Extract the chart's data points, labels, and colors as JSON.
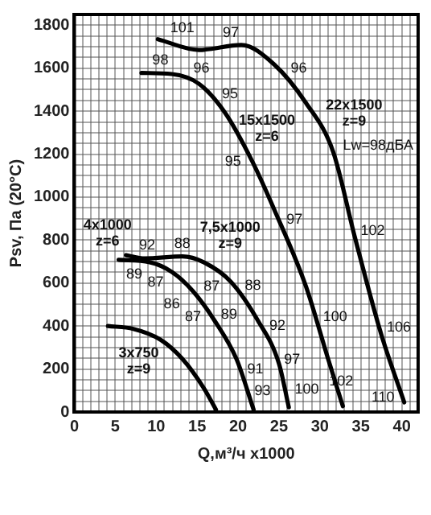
{
  "chart_data": {
    "type": "line",
    "xlabel": "Q,м³/ч x1000",
    "ylabel": "Psv, Па (20°С)",
    "xlim": [
      0,
      42
    ],
    "ylim": [
      0,
      1850
    ],
    "xticks": [
      0,
      {
        "value": 1,
        "label": null
      },
      {
        "value": 2,
        "label": null
      },
      {
        "value": 3,
        "label": null
      },
      {
        "value": 4,
        "label": null
      },
      5,
      {
        "value": 6,
        "label": null
      },
      {
        "value": 7,
        "label": null
      },
      {
        "value": 8,
        "label": null
      },
      {
        "value": 9,
        "label": null
      },
      10,
      {
        "value": 11,
        "label": null
      },
      {
        "value": 12,
        "label": null
      },
      {
        "value": 13,
        "label": null
      },
      {
        "value": 14,
        "label": null
      },
      15,
      {
        "value": 16,
        "label": null
      },
      {
        "value": 17,
        "label": null
      },
      {
        "value": 18,
        "label": null
      },
      {
        "value": 19,
        "label": null
      },
      20,
      {
        "value": 21,
        "label": null
      },
      {
        "value": 22,
        "label": null
      },
      {
        "value": 23,
        "label": null
      },
      {
        "value": 24,
        "label": null
      },
      25,
      {
        "value": 26,
        "label": null
      },
      {
        "value": 27,
        "label": null
      },
      {
        "value": 28,
        "label": null
      },
      {
        "value": 29,
        "label": null
      },
      30,
      {
        "value": 31,
        "label": null
      },
      {
        "value": 32,
        "label": null
      },
      {
        "value": 33,
        "label": null
      },
      {
        "value": 34,
        "label": null
      },
      35,
      {
        "value": 36,
        "label": null
      },
      {
        "value": 37,
        "label": null
      },
      {
        "value": 38,
        "label": null
      },
      {
        "value": 39,
        "label": null
      },
      40,
      {
        "value": 41,
        "label": null
      }
    ],
    "yticks": [
      0,
      {
        "value": 50,
        "label": null
      },
      {
        "value": 100,
        "label": null
      },
      {
        "value": 150,
        "label": null
      },
      200,
      {
        "value": 250,
        "label": null
      },
      {
        "value": 300,
        "label": null
      },
      {
        "value": 350,
        "label": null
      },
      400,
      {
        "value": 450,
        "label": null
      },
      {
        "value": 500,
        "label": null
      },
      {
        "value": 550,
        "label": null
      },
      600,
      {
        "value": 650,
        "label": null
      },
      {
        "value": 700,
        "label": null
      },
      {
        "value": 750,
        "label": null
      },
      800,
      {
        "value": 850,
        "label": null
      },
      {
        "value": 900,
        "label": null
      },
      {
        "value": 950,
        "label": null
      },
      1000,
      {
        "value": 1050,
        "label": null
      },
      {
        "value": 1100,
        "label": null
      },
      {
        "value": 1150,
        "label": null
      },
      1200,
      {
        "value": 1250,
        "label": null
      },
      {
        "value": 1300,
        "label": null
      },
      {
        "value": 1350,
        "label": null
      },
      1400,
      {
        "value": 1450,
        "label": null
      },
      {
        "value": 1500,
        "label": null
      },
      {
        "value": 1550,
        "label": null
      },
      1600,
      {
        "value": 1650,
        "label": null
      },
      {
        "value": 1700,
        "label": null
      },
      {
        "value": 1750,
        "label": null
      },
      1800
    ],
    "grid": true,
    "legend": false,
    "marker": "none",
    "line_style": "solid",
    "series": [
      {
        "color": "#000000",
        "x": [
          10.2,
          15.2,
          20.4,
          24.4,
          28.3,
          31.6,
          34.3,
          37.5,
          40.3
        ],
        "values": [
          1735,
          1685,
          1708,
          1618,
          1438,
          1213,
          809,
          360,
          45
        ]
      },
      {
        "color": "#000000",
        "x": [
          8.2,
          11.9,
          15.2,
          18.4,
          21.7,
          24.4,
          28.3,
          31,
          32.8
        ],
        "values": [
          1578,
          1573,
          1528,
          1393,
          1169,
          944,
          584,
          247,
          27
        ]
      },
      {
        "color": "#000000",
        "x": [
          6.3,
          8.6,
          13.2,
          15.8,
          19.1,
          22.4,
          25,
          26.2
        ],
        "values": [
          730,
          715,
          724,
          697,
          607,
          427,
          225,
          22
        ]
      },
      {
        "color": "#000000",
        "x": [
          5.4,
          9.2,
          11.9,
          14.5,
          17.1,
          19.8,
          21.9
        ],
        "values": [
          708,
          697,
          652,
          562,
          427,
          247,
          11
        ]
      },
      {
        "color": "#000000",
        "x": [
          4.1,
          7.2,
          10.5,
          13.2,
          15.8,
          17.3
        ],
        "values": [
          400,
          387,
          337,
          247,
          112,
          11
        ]
      }
    ],
    "annotations": [
      {
        "text": "101",
        "x": 12.4,
        "y": 1713
      },
      {
        "text": "97",
        "x": 19.1,
        "y": 1702
      },
      {
        "text": "96",
        "x": 26,
        "y": 1544
      },
      {
        "text": "22x1500\nz=9",
        "x": 30,
        "y": 1322
      },
      {
        "text": "102",
        "x": 34.3,
        "y": 809
      },
      {
        "text": "106",
        "x": 37.5,
        "y": 360
      },
      {
        "text": "110",
        "x": 39.8,
        "y": 101
      },
      "Lw=98дБА",
      {
        "text": "98",
        "x": 10.5,
        "y": 1575
      },
      {
        "text": "96",
        "x": 14.8,
        "y": 1533
      },
      {
        "text": "95",
        "x": 17.6,
        "y": 1427
      },
      {
        "text": "15x1500\nz=6",
        "x": 19.5,
        "y": 1318
      },
      {
        "text": "95",
        "x": 20.4,
        "y": 1257
      },
      {
        "text": "97",
        "x": 25.5,
        "y": 842
      },
      {
        "text": "100",
        "x": 29.7,
        "y": 409
      },
      {
        "text": "102",
        "x": 32.6,
        "y": 51
      },
      {
        "text": "92",
        "x": 8.9,
        "y": 716
      },
      {
        "text": "88",
        "x": 13.2,
        "y": 724
      },
      {
        "text": "7,5x1000\nz=9",
        "x": 15.8,
        "y": 697
      },
      {
        "text": "87",
        "x": 17.5,
        "y": 651
      },
      {
        "text": "88",
        "x": 20.4,
        "y": 536
      },
      {
        "text": "92",
        "x": 23.4,
        "y": 349
      },
      {
        "text": "97",
        "x": 25.2,
        "y": 191
      },
      {
        "text": "100",
        "x": 26.2,
        "y": 22
      },
      {
        "text": "89",
        "x": 6.6,
        "y": 705
      },
      {
        "text": "87",
        "x": 8.9,
        "y": 698
      },
      {
        "text": "86",
        "x": 11.9,
        "y": 652
      },
      {
        "text": "87",
        "x": 14.5,
        "y": 562
      },
      {
        "text": "4x1000\nz=6",
        "x": 5.4,
        "y": 708
      },
      {
        "text": "89",
        "x": 17.5,
        "y": 400
      },
      {
        "text": "91",
        "x": 20.7,
        "y": 146
      },
      {
        "text": "93",
        "x": 21.6,
        "y": 45
      },
      {
        "text": "3x750\nz=9",
        "x": 10.5,
        "y": 337
      }
    ]
  }
}
